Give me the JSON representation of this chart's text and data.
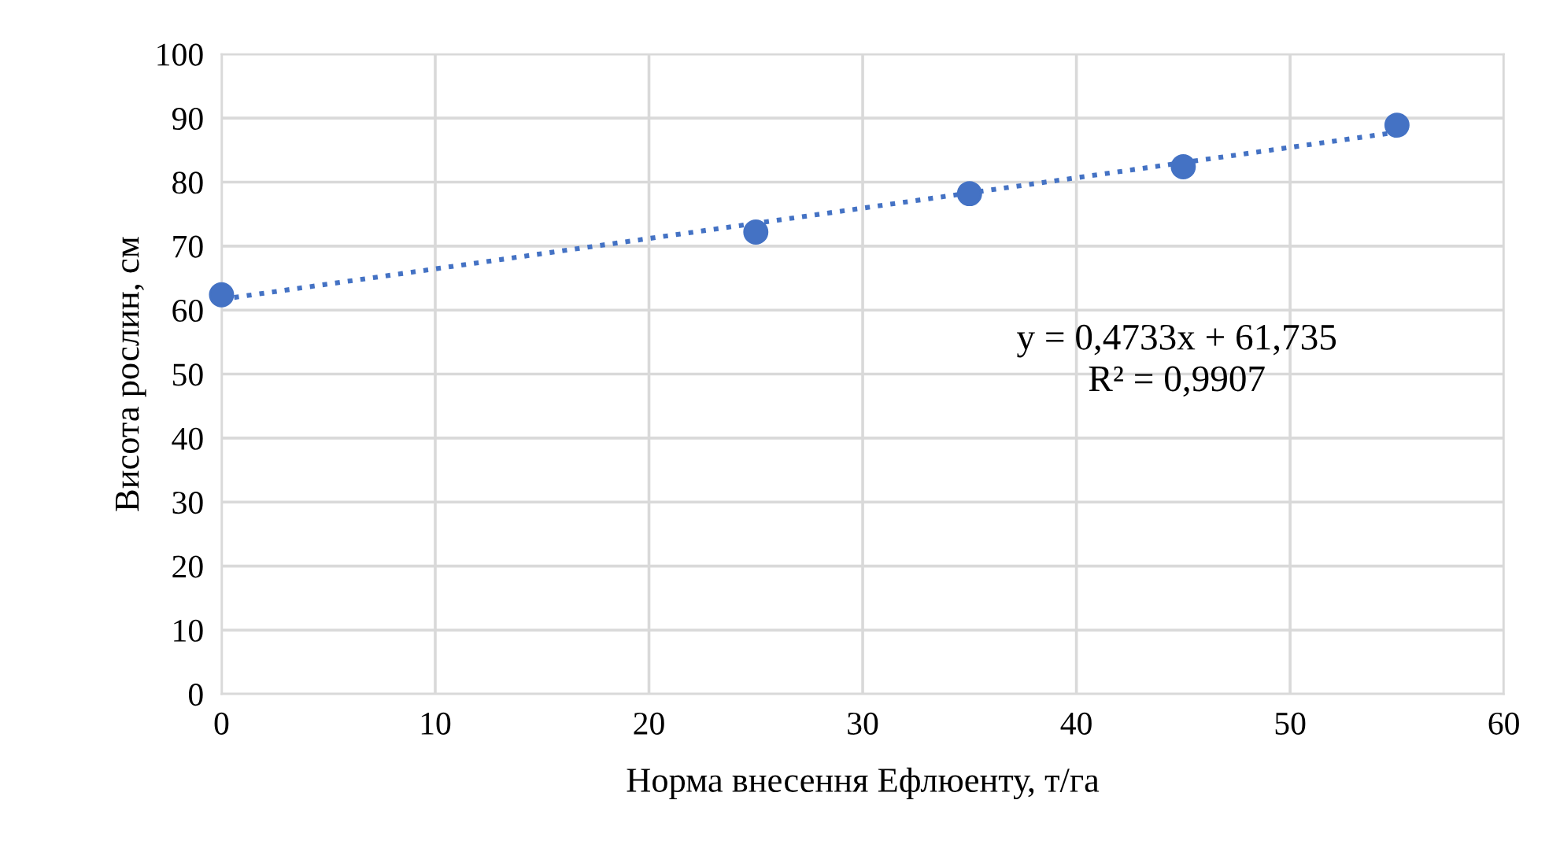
{
  "chart_data": {
    "type": "scatter",
    "xlabel": "Норма внесення Ефлюенту, т/га",
    "ylabel": "Висота рослин, см",
    "xlim": [
      0,
      60
    ],
    "xticks": [
      0,
      10,
      20,
      30,
      40,
      50,
      60
    ],
    "ylim": [
      0,
      100
    ],
    "yticks": [
      0,
      10,
      20,
      30,
      40,
      50,
      60,
      70,
      80,
      90,
      100
    ],
    "grid": true,
    "legend": false,
    "series": [
      {
        "marker": "circle",
        "color": "#4472c4",
        "x": [
          0,
          25,
          35,
          45,
          55
        ],
        "values": [
          62.4,
          72.2,
          78.2,
          82.4,
          88.9
        ]
      },
      {
        "type": "line",
        "color": "#4472c4",
        "line_style": "dotted",
        "marker": "none",
        "x": [
          0,
          55
        ],
        "values": [
          61.7,
          87.8
        ]
      }
    ],
    "annotations": [
      "y = 0,4733x + 61,735\nR² = 0,9907"
    ]
  }
}
